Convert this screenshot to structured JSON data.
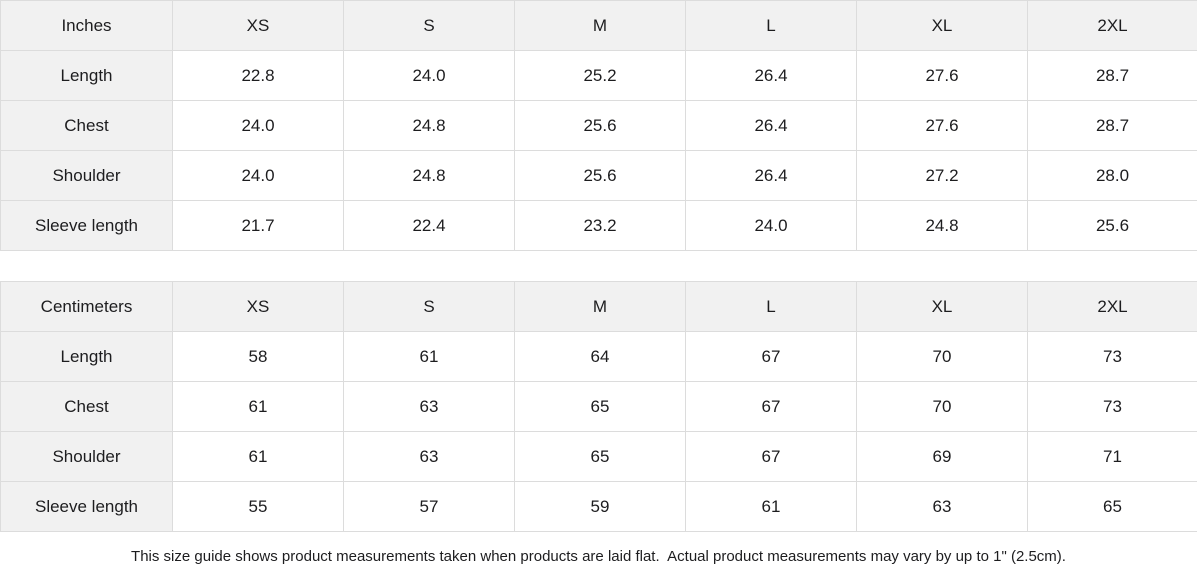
{
  "colors": {
    "label_background": "#f1f1f1",
    "cell_background": "#ffffff",
    "grid_border": "#dcdcdc",
    "text": "#1d1d1f"
  },
  "tables": [
    {
      "unit_label": "Inches",
      "size_headers": [
        "XS",
        "S",
        "M",
        "L",
        "XL",
        "2XL"
      ],
      "rows": [
        {
          "label": "Length",
          "values": [
            "22.8",
            "24.0",
            "25.2",
            "26.4",
            "27.6",
            "28.7"
          ]
        },
        {
          "label": "Chest",
          "values": [
            "24.0",
            "24.8",
            "25.6",
            "26.4",
            "27.6",
            "28.7"
          ]
        },
        {
          "label": "Shoulder",
          "values": [
            "24.0",
            "24.8",
            "25.6",
            "26.4",
            "27.2",
            "28.0"
          ]
        },
        {
          "label": "Sleeve length",
          "values": [
            "21.7",
            "22.4",
            "23.2",
            "24.0",
            "24.8",
            "25.6"
          ]
        }
      ]
    },
    {
      "unit_label": "Centimeters",
      "size_headers": [
        "XS",
        "S",
        "M",
        "L",
        "XL",
        "2XL"
      ],
      "rows": [
        {
          "label": "Length",
          "values": [
            "58",
            "61",
            "64",
            "67",
            "70",
            "73"
          ]
        },
        {
          "label": "Chest",
          "values": [
            "61",
            "63",
            "65",
            "67",
            "70",
            "73"
          ]
        },
        {
          "label": "Shoulder",
          "values": [
            "61",
            "63",
            "65",
            "67",
            "69",
            "71"
          ]
        },
        {
          "label": "Sleeve length",
          "values": [
            "55",
            "57",
            "59",
            "61",
            "63",
            "65"
          ]
        }
      ]
    }
  ],
  "footer": {
    "note": "This size guide shows product measurements taken when products are laid flat.  Actual product measurements may vary by up to 1\" (2.5cm)."
  }
}
